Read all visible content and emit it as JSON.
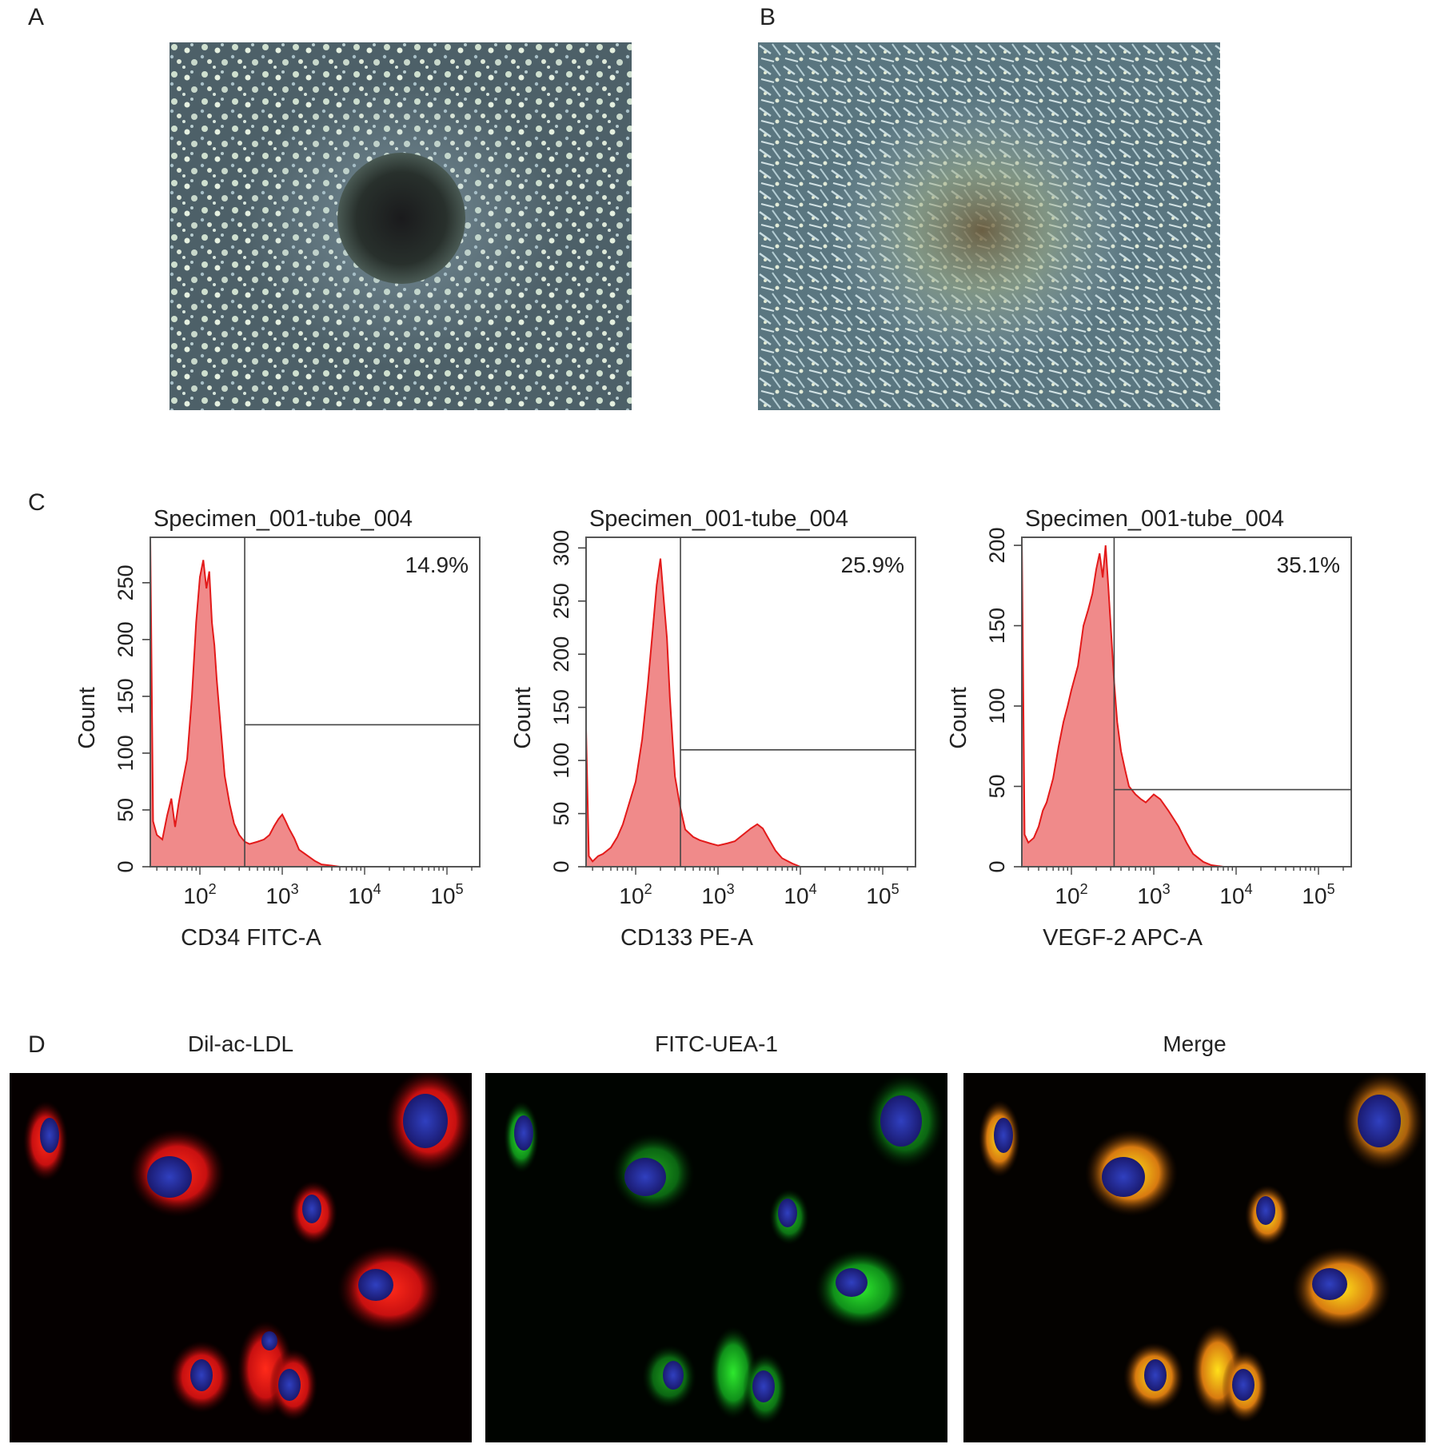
{
  "panels": {
    "a": {
      "label": "A"
    },
    "b": {
      "label": "B"
    },
    "c": {
      "label": "C"
    },
    "d": {
      "label": "D"
    }
  },
  "fluorescence": {
    "titles": [
      "Dil-ac-LDL",
      "FITC-UEA-1",
      "Merge"
    ]
  },
  "chart_data": [
    {
      "type": "area",
      "title": "Specimen_001-tube_004",
      "xlabel": "CD34 FITC-A",
      "ylabel": "Count",
      "x_scale": "log",
      "xlim": [
        25,
        250000
      ],
      "ylim": [
        0,
        290
      ],
      "yticks": [
        0,
        50,
        100,
        150,
        200,
        250
      ],
      "xticks": [
        {
          "value": 100,
          "base": "10",
          "exp": "2"
        },
        {
          "value": 1000,
          "base": "10",
          "exp": "3"
        },
        {
          "value": 10000,
          "base": "10",
          "exp": "4"
        },
        {
          "value": 100000,
          "base": "10",
          "exp": "5"
        }
      ],
      "gate": {
        "x": 350,
        "y": 125,
        "percent_label": "14.9%"
      },
      "fill_color": "#f08a8a",
      "line_color": "#e31a1a",
      "x": [
        25,
        27,
        30,
        35,
        40,
        45,
        50,
        55,
        60,
        70,
        80,
        90,
        100,
        110,
        120,
        130,
        140,
        150,
        160,
        180,
        200,
        230,
        260,
        300,
        350,
        400,
        500,
        600,
        700,
        800,
        900,
        1000,
        1100,
        1200,
        1400,
        1600,
        2000,
        2500,
        3000,
        4000,
        5000
      ],
      "y": [
        290,
        40,
        28,
        24,
        45,
        60,
        35,
        55,
        70,
        95,
        150,
        215,
        255,
        270,
        245,
        260,
        215,
        195,
        165,
        120,
        80,
        55,
        38,
        28,
        22,
        20,
        22,
        24,
        28,
        36,
        42,
        46,
        40,
        34,
        25,
        15,
        10,
        5,
        2,
        1,
        0
      ]
    },
    {
      "type": "area",
      "title": "Specimen_001-tube_004",
      "xlabel": "CD133 PE-A",
      "ylabel": "Count",
      "x_scale": "log",
      "xlim": [
        25,
        250000
      ],
      "ylim": [
        0,
        310
      ],
      "yticks": [
        0,
        50,
        100,
        150,
        200,
        250,
        300
      ],
      "xticks": [
        {
          "value": 100,
          "base": "10",
          "exp": "2"
        },
        {
          "value": 1000,
          "base": "10",
          "exp": "3"
        },
        {
          "value": 10000,
          "base": "10",
          "exp": "4"
        },
        {
          "value": 100000,
          "base": "10",
          "exp": "5"
        }
      ],
      "gate": {
        "x": 350,
        "y": 110,
        "percent_label": "25.9%"
      },
      "fill_color": "#f08a8a",
      "line_color": "#e31a1a",
      "x": [
        25,
        27,
        30,
        35,
        40,
        50,
        60,
        70,
        80,
        100,
        120,
        140,
        160,
        180,
        200,
        220,
        240,
        260,
        280,
        300,
        350,
        400,
        500,
        600,
        800,
        1000,
        1300,
        1600,
        2000,
        2500,
        3000,
        3500,
        4000,
        5000,
        6000,
        8000,
        10000
      ],
      "y": [
        130,
        10,
        5,
        10,
        12,
        18,
        28,
        40,
        55,
        80,
        120,
        170,
        220,
        265,
        290,
        250,
        215,
        160,
        120,
        85,
        55,
        35,
        28,
        25,
        22,
        20,
        22,
        24,
        30,
        36,
        40,
        36,
        28,
        15,
        8,
        3,
        0
      ]
    },
    {
      "type": "area",
      "title": "Specimen_001-tube_004",
      "xlabel": "VEGF-2 APC-A",
      "ylabel": "Count",
      "x_scale": "log",
      "xlim": [
        25,
        250000
      ],
      "ylim": [
        0,
        205
      ],
      "yticks": [
        0,
        50,
        100,
        150,
        200
      ],
      "xticks": [
        {
          "value": 100,
          "base": "10",
          "exp": "2"
        },
        {
          "value": 1000,
          "base": "10",
          "exp": "3"
        },
        {
          "value": 10000,
          "base": "10",
          "exp": "4"
        },
        {
          "value": 100000,
          "base": "10",
          "exp": "5"
        }
      ],
      "gate": {
        "x": 330,
        "y": 48,
        "percent_label": "35.1%"
      },
      "fill_color": "#f08a8a",
      "line_color": "#e31a1a",
      "x": [
        25,
        27,
        30,
        35,
        40,
        45,
        50,
        60,
        70,
        80,
        90,
        100,
        120,
        140,
        160,
        180,
        200,
        220,
        240,
        260,
        280,
        300,
        330,
        360,
        400,
        450,
        500,
        600,
        700,
        800,
        1000,
        1200,
        1500,
        2000,
        2500,
        3000,
        4000,
        5000,
        7000
      ],
      "y": [
        205,
        20,
        15,
        18,
        25,
        35,
        40,
        55,
        75,
        90,
        100,
        110,
        125,
        150,
        160,
        170,
        185,
        195,
        180,
        200,
        175,
        150,
        115,
        90,
        72,
        60,
        50,
        45,
        42,
        40,
        45,
        42,
        35,
        25,
        15,
        8,
        3,
        1,
        0
      ]
    }
  ]
}
